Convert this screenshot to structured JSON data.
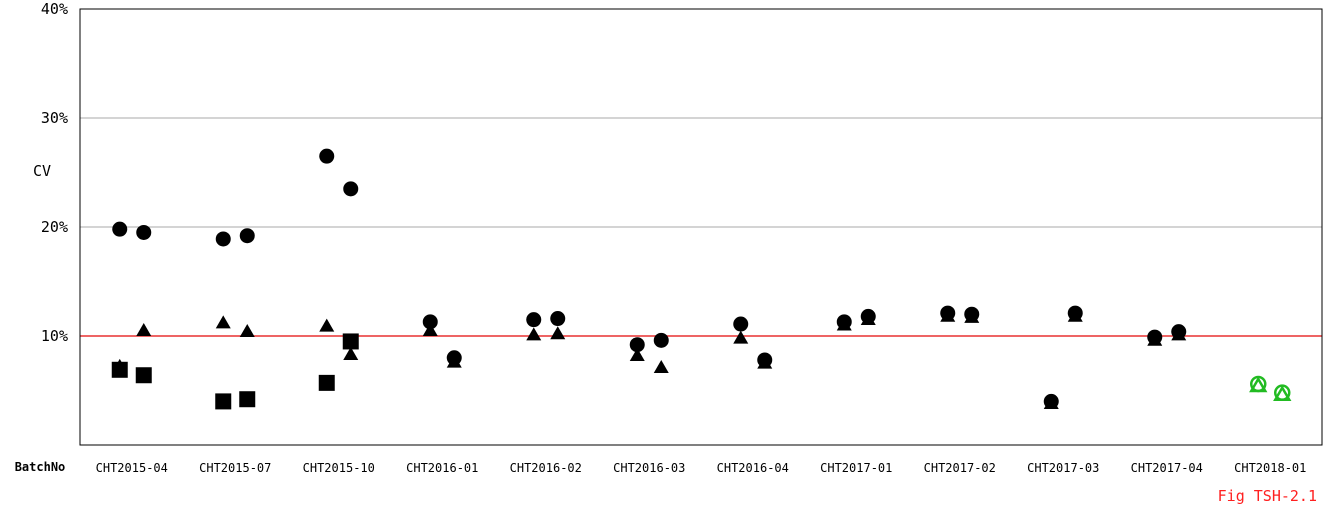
{
  "chart_data": {
    "type": "scatter",
    "ylabel": "CV",
    "xlabel": "BatchNo",
    "caption": "Fig TSH-2.1",
    "ylim": [
      0,
      40
    ],
    "y_ticks": [
      {
        "value": 10,
        "label": "10%"
      },
      {
        "value": 20,
        "label": "20%"
      },
      {
        "value": 30,
        "label": "30%"
      },
      {
        "value": 40,
        "label": "40%"
      }
    ],
    "grid": true,
    "reference_line": {
      "value": 10,
      "color": "#e83030"
    },
    "categories": [
      "CHT2015-04",
      "CHT2015-07",
      "CHT2015-10",
      "CHT2016-01",
      "CHT2016-02",
      "CHT2016-03",
      "CHT2016-04",
      "CHT2017-01",
      "CHT2017-02",
      "CHT2017-03",
      "CHT2017-04",
      "CHT2018-01"
    ],
    "series": [
      {
        "marker": "circle",
        "color": "#000000",
        "points": [
          {
            "category": "CHT2015-04",
            "offset": 0,
            "y": 19.8
          },
          {
            "category": "CHT2015-04",
            "offset": 1,
            "y": 19.5
          },
          {
            "category": "CHT2015-07",
            "offset": 0,
            "y": 18.9
          },
          {
            "category": "CHT2015-07",
            "offset": 1,
            "y": 19.2
          },
          {
            "category": "CHT2015-10",
            "offset": 0,
            "y": 26.5
          },
          {
            "category": "CHT2015-10",
            "offset": 1,
            "y": 23.5
          },
          {
            "category": "CHT2016-01",
            "offset": 0,
            "y": 11.3
          },
          {
            "category": "CHT2016-01",
            "offset": 1,
            "y": 8.0
          },
          {
            "category": "CHT2016-02",
            "offset": 0,
            "y": 11.5
          },
          {
            "category": "CHT2016-02",
            "offset": 1,
            "y": 11.6
          },
          {
            "category": "CHT2016-03",
            "offset": 0,
            "y": 9.2
          },
          {
            "category": "CHT2016-03",
            "offset": 1,
            "y": 9.6
          },
          {
            "category": "CHT2016-04",
            "offset": 0,
            "y": 11.1
          },
          {
            "category": "CHT2016-04",
            "offset": 1,
            "y": 7.8
          },
          {
            "category": "CHT2017-01",
            "offset": 0,
            "y": 11.3
          },
          {
            "category": "CHT2017-01",
            "offset": 1,
            "y": 11.8
          },
          {
            "category": "CHT2017-02",
            "offset": 0,
            "y": 12.1
          },
          {
            "category": "CHT2017-02",
            "offset": 1,
            "y": 12.0
          },
          {
            "category": "CHT2017-03",
            "offset": 0,
            "y": 4.0
          },
          {
            "category": "CHT2017-03",
            "offset": 1,
            "y": 12.1
          },
          {
            "category": "CHT2017-04",
            "offset": 0,
            "y": 9.9
          },
          {
            "category": "CHT2017-04",
            "offset": 1,
            "y": 10.4
          }
        ]
      },
      {
        "marker": "triangle",
        "color": "#000000",
        "points": [
          {
            "category": "CHT2015-04",
            "offset": 0,
            "y": 7.3
          },
          {
            "category": "CHT2015-04",
            "offset": 1,
            "y": 10.6
          },
          {
            "category": "CHT2015-07",
            "offset": 0,
            "y": 11.3
          },
          {
            "category": "CHT2015-07",
            "offset": 1,
            "y": 10.5
          },
          {
            "category": "CHT2015-10",
            "offset": 0,
            "y": 11.0
          },
          {
            "category": "CHT2015-10",
            "offset": 1,
            "y": 8.4
          },
          {
            "category": "CHT2016-01",
            "offset": 0,
            "y": 10.6
          },
          {
            "category": "CHT2016-01",
            "offset": 1,
            "y": 7.7
          },
          {
            "category": "CHT2016-02",
            "offset": 0,
            "y": 10.2
          },
          {
            "category": "CHT2016-02",
            "offset": 1,
            "y": 10.3
          },
          {
            "category": "CHT2016-03",
            "offset": 0,
            "y": 8.3
          },
          {
            "category": "CHT2016-03",
            "offset": 1,
            "y": 7.2
          },
          {
            "category": "CHT2016-04",
            "offset": 0,
            "y": 9.9
          },
          {
            "category": "CHT2016-04",
            "offset": 1,
            "y": 7.6
          },
          {
            "category": "CHT2017-01",
            "offset": 0,
            "y": 11.1
          },
          {
            "category": "CHT2017-01",
            "offset": 1,
            "y": 11.6
          },
          {
            "category": "CHT2017-02",
            "offset": 0,
            "y": 11.9
          },
          {
            "category": "CHT2017-02",
            "offset": 1,
            "y": 11.8
          },
          {
            "category": "CHT2017-03",
            "offset": 0,
            "y": 3.9
          },
          {
            "category": "CHT2017-03",
            "offset": 1,
            "y": 11.9
          },
          {
            "category": "CHT2017-04",
            "offset": 0,
            "y": 9.7
          },
          {
            "category": "CHT2017-04",
            "offset": 1,
            "y": 10.2
          }
        ]
      },
      {
        "marker": "square",
        "color": "#000000",
        "points": [
          {
            "category": "CHT2015-04",
            "offset": 0,
            "y": 6.9
          },
          {
            "category": "CHT2015-04",
            "offset": 1,
            "y": 6.4
          },
          {
            "category": "CHT2015-07",
            "offset": 0,
            "y": 4.0
          },
          {
            "category": "CHT2015-07",
            "offset": 1,
            "y": 4.2
          },
          {
            "category": "CHT2015-10",
            "offset": 0,
            "y": 5.7
          },
          {
            "category": "CHT2015-10",
            "offset": 1,
            "y": 9.5
          }
        ]
      },
      {
        "marker": "open-circle",
        "color": "#22bb22",
        "points": [
          {
            "category": "CHT2018-01",
            "offset": 0,
            "y": 5.6
          },
          {
            "category": "CHT2018-01",
            "offset": 1,
            "y": 4.8
          }
        ]
      },
      {
        "marker": "open-triangle",
        "color": "#22bb22",
        "points": [
          {
            "category": "CHT2018-01",
            "offset": 0,
            "y": 5.5
          },
          {
            "category": "CHT2018-01",
            "offset": 1,
            "y": 4.7
          }
        ]
      }
    ]
  }
}
